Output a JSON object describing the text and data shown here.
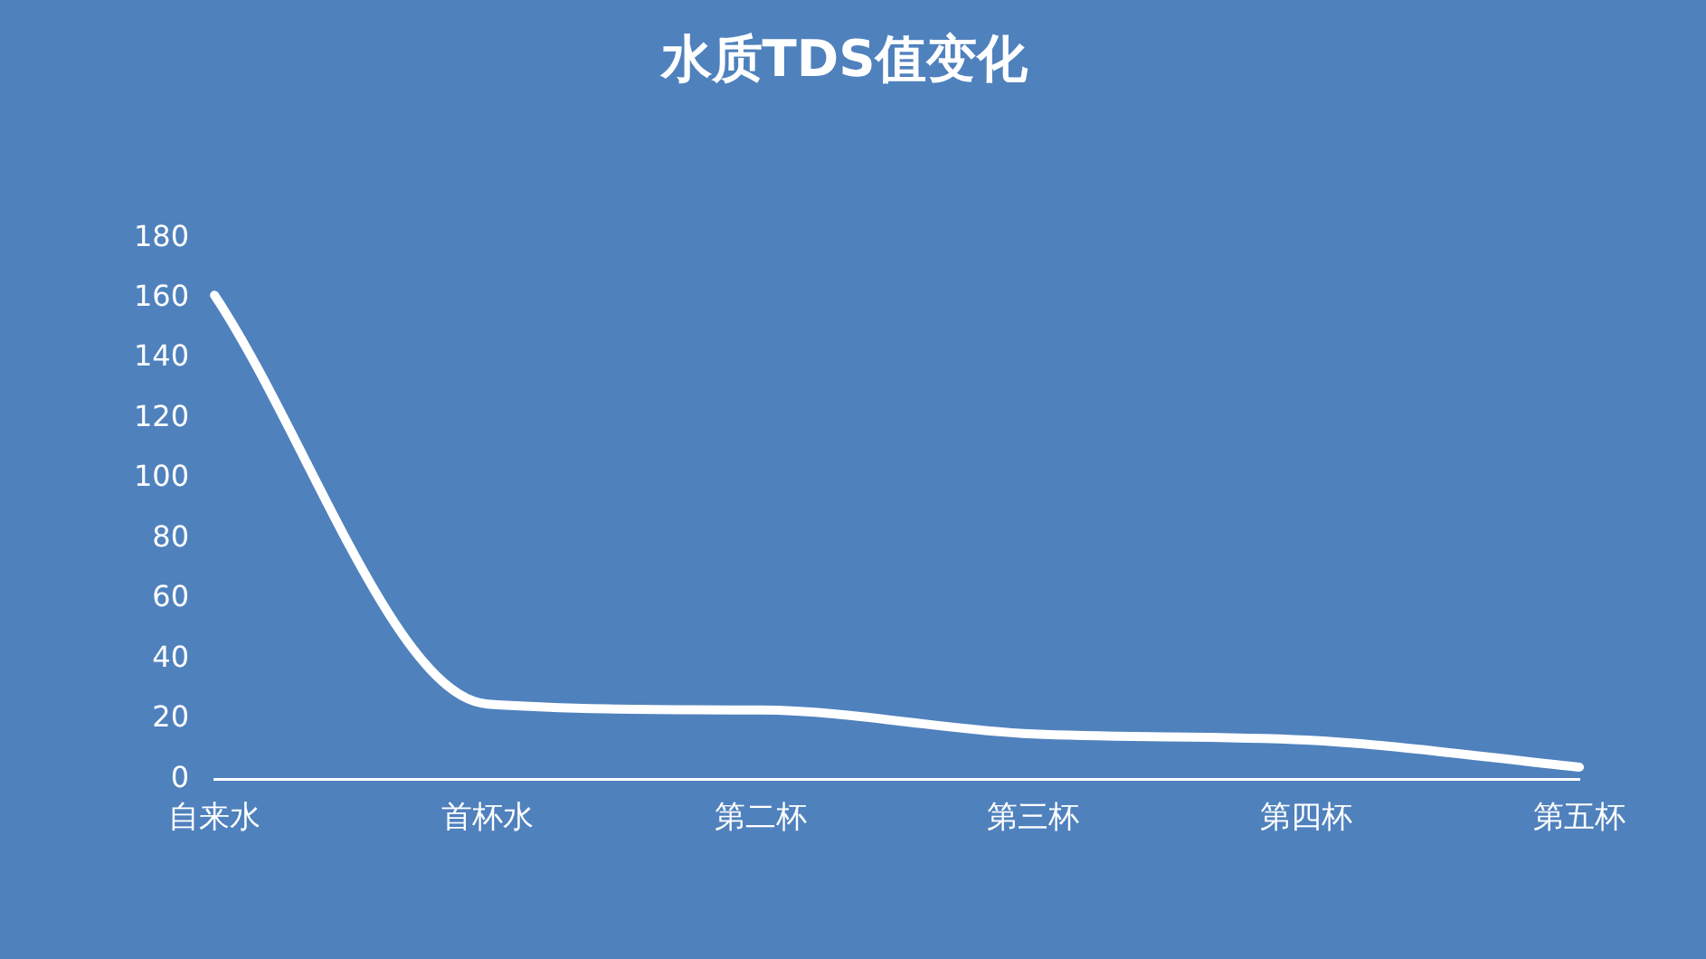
{
  "chart_data": {
    "type": "line",
    "title": "水质TDS值变化",
    "categories": [
      "自来水",
      "首杯水",
      "第二杯",
      "第三杯",
      "第四杯",
      "第五杯"
    ],
    "series": [
      {
        "color": "#ffffff",
        "values": [
          161,
          25,
          23,
          15,
          13,
          4
        ]
      }
    ],
    "ylim": [
      0,
      180
    ],
    "yticks": [
      0,
      20,
      40,
      60,
      80,
      100,
      120,
      140,
      160,
      180
    ],
    "grid": false,
    "legend": false,
    "marker": "none",
    "line_style": "solid"
  }
}
